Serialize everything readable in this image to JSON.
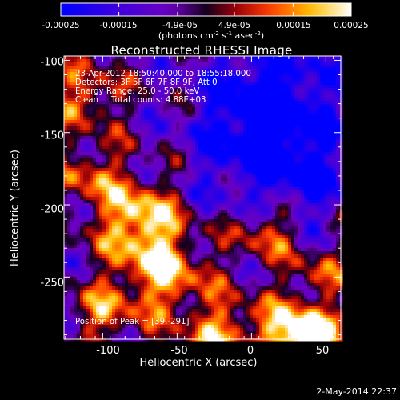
{
  "chart_data": {
    "type": "heatmap",
    "title": "Reconstructed RHESSI Image",
    "xlabel": "Heliocentric X (arcsec)",
    "ylabel": "Heliocentric Y (arcsec)",
    "xlim": [
      -126,
      60
    ],
    "ylim": [
      -293,
      -97
    ],
    "xticks": [
      -100,
      -50,
      0,
      50
    ],
    "yticks": [
      -100,
      -150,
      -200,
      -250
    ],
    "colormap": "hot-metal",
    "colorbar": {
      "range": [
        -0.00025,
        0.00025
      ],
      "ticks": [
        "-0.00025",
        "-0.00015",
        "-4.9e-05",
        "4.9e-05",
        "0.00015",
        "0.00025"
      ],
      "tick_values": [
        -0.00025,
        -0.00015,
        -4.9e-05,
        4.9e-05,
        0.00015,
        0.00025
      ],
      "units_parts": [
        "(photons cm",
        "-2",
        " s",
        "-1",
        " asec",
        "-2",
        ")"
      ]
    },
    "annotations": [
      "23-Apr-2012 18:50:40.000 to 18:55:18.000",
      "Detectors: 3F 5F 6F 7F 8F 9F, Att 0",
      "Energy Range: 25.0 - 50.0 keV",
      "Clean     Total counts: 4.88E+03"
    ],
    "peak_label": "Position of Peak = [39,-291]",
    "peak": [
      39,
      -291
    ]
  },
  "timestamp": "2-May-2014 22:37",
  "colors": {
    "background": "#000000",
    "text": "#ffffff",
    "low": "#0000ff",
    "mid": "#6000c8",
    "high": "#ffffff"
  }
}
